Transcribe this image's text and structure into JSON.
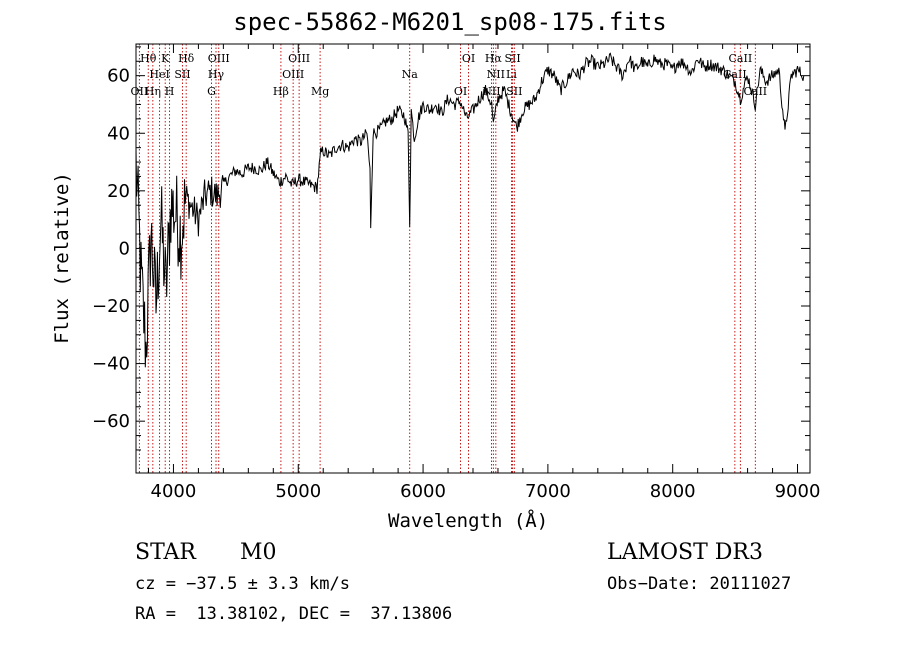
{
  "chart_data": {
    "type": "line",
    "title": "spec-55862-M6201_sp08-175.fits",
    "xlabel": "Wavelength (Å)",
    "ylabel": "Flux (relative)",
    "xlim": [
      3700,
      9100
    ],
    "ylim": [
      -78,
      71
    ],
    "xticks": [
      4000,
      5000,
      6000,
      7000,
      8000,
      9000
    ],
    "yticks": [
      -60,
      -40,
      -20,
      0,
      20,
      40,
      60
    ],
    "series": [
      {
        "name": "spectrum",
        "x": [
          3700,
          3740,
          3780,
          3820,
          3860,
          3900,
          3940,
          3980,
          4020,
          4060,
          4100,
          4150,
          4200,
          4250,
          4300,
          4350,
          4400,
          4450,
          4500,
          4550,
          4600,
          4650,
          4700,
          4750,
          4800,
          4850,
          4900,
          4950,
          5000,
          5050,
          5100,
          5150,
          5180,
          5200,
          5250,
          5300,
          5350,
          5400,
          5450,
          5500,
          5550,
          5575,
          5580,
          5600,
          5650,
          5700,
          5750,
          5800,
          5850,
          5880,
          5893,
          5905,
          5930,
          5960,
          6000,
          6050,
          6100,
          6150,
          6200,
          6250,
          6300,
          6350,
          6400,
          6450,
          6500,
          6550,
          6563,
          6600,
          6650,
          6700,
          6750,
          6800,
          6850,
          6900,
          6950,
          7000,
          7050,
          7100,
          7150,
          7200,
          7250,
          7300,
          7350,
          7400,
          7450,
          7500,
          7550,
          7600,
          7650,
          7700,
          7750,
          7800,
          7850,
          7900,
          7950,
          8000,
          8050,
          8100,
          8150,
          8200,
          8250,
          8300,
          8350,
          8400,
          8450,
          8500,
          8542,
          8600,
          8662,
          8700,
          8750,
          8800,
          8850,
          8900,
          8950,
          9000,
          9050
        ],
        "y": [
          30,
          -10,
          -35,
          5,
          -20,
          10,
          -15,
          15,
          12,
          5,
          18,
          14,
          10,
          18,
          20,
          18,
          22,
          25,
          27,
          26,
          28,
          28,
          27,
          30,
          26,
          23,
          25,
          22,
          24,
          23,
          22,
          21,
          33,
          34,
          32,
          35,
          36,
          35,
          38,
          37,
          40,
          27,
          8,
          40,
          41,
          44,
          45,
          48,
          46,
          40,
          9,
          48,
          38,
          45,
          50,
          48,
          50,
          47,
          52,
          50,
          51,
          45,
          48,
          52,
          55,
          50,
          43,
          52,
          55,
          48,
          42,
          48,
          50,
          52,
          58,
          62,
          60,
          55,
          58,
          62,
          60,
          64,
          65,
          63,
          64,
          66,
          63,
          60,
          66,
          62,
          65,
          63,
          66,
          64,
          64,
          62,
          65,
          64,
          61,
          66,
          63,
          64,
          63,
          62,
          60,
          58,
          52,
          60,
          50,
          62,
          58,
          60,
          62,
          40,
          60,
          62,
          60
        ]
      }
    ],
    "line_markers": [
      {
        "label": "Hθ",
        "x": 3798,
        "row": 1
      },
      {
        "label": "OII",
        "x": 3727,
        "row": 3
      },
      {
        "label": "Hη",
        "x": 3835,
        "row": 3
      },
      {
        "label": "HeI",
        "x": 3889,
        "row": 2
      },
      {
        "label": "K",
        "x": 3934,
        "row": 1
      },
      {
        "label": "H",
        "x": 3969,
        "row": 3
      },
      {
        "label": "SII",
        "x": 4072,
        "row": 2
      },
      {
        "label": "Hδ",
        "x": 4102,
        "row": 1
      },
      {
        "label": "G",
        "x": 4305,
        "row": 3
      },
      {
        "label": "OIII",
        "x": 4363,
        "row": 1
      },
      {
        "label": "Hγ",
        "x": 4341,
        "row": 2
      },
      {
        "label": "Hβ",
        "x": 4861,
        "row": 3
      },
      {
        "label": "OIII",
        "x": 4959,
        "row": 2
      },
      {
        "label": "OIII",
        "x": 5007,
        "row": 1
      },
      {
        "label": "Mg",
        "x": 5175,
        "row": 3
      },
      {
        "label": "Na",
        "x": 5893,
        "row": 2
      },
      {
        "label": "OI",
        "x": 6300,
        "row": 3
      },
      {
        "label": "OI",
        "x": 6364,
        "row": 1
      },
      {
        "label": "NII",
        "x": 6548,
        "row": 3
      },
      {
        "label": "Hα",
        "x": 6563,
        "row": 1
      },
      {
        "label": "NII",
        "x": 6583,
        "row": 2
      },
      {
        "label": "Li",
        "x": 6708,
        "row": 2
      },
      {
        "label": "SII",
        "x": 6717,
        "row": 1
      },
      {
        "label": "SII",
        "x": 6731,
        "row": 3
      },
      {
        "label": "CaII",
        "x": 8498,
        "row": 2
      },
      {
        "label": "CaII",
        "x": 8542,
        "row": 1
      },
      {
        "label": "CaII",
        "x": 8662,
        "row": 3
      }
    ]
  },
  "footer": {
    "class_label": "STAR",
    "subclass": "M0",
    "survey": "LAMOST DR3",
    "cz": "cz = −37.5 ± 3.3 km/s",
    "obs_date": "Obs−Date: 20111027",
    "coords": "RA =  13.38102, DEC =  37.13806"
  }
}
